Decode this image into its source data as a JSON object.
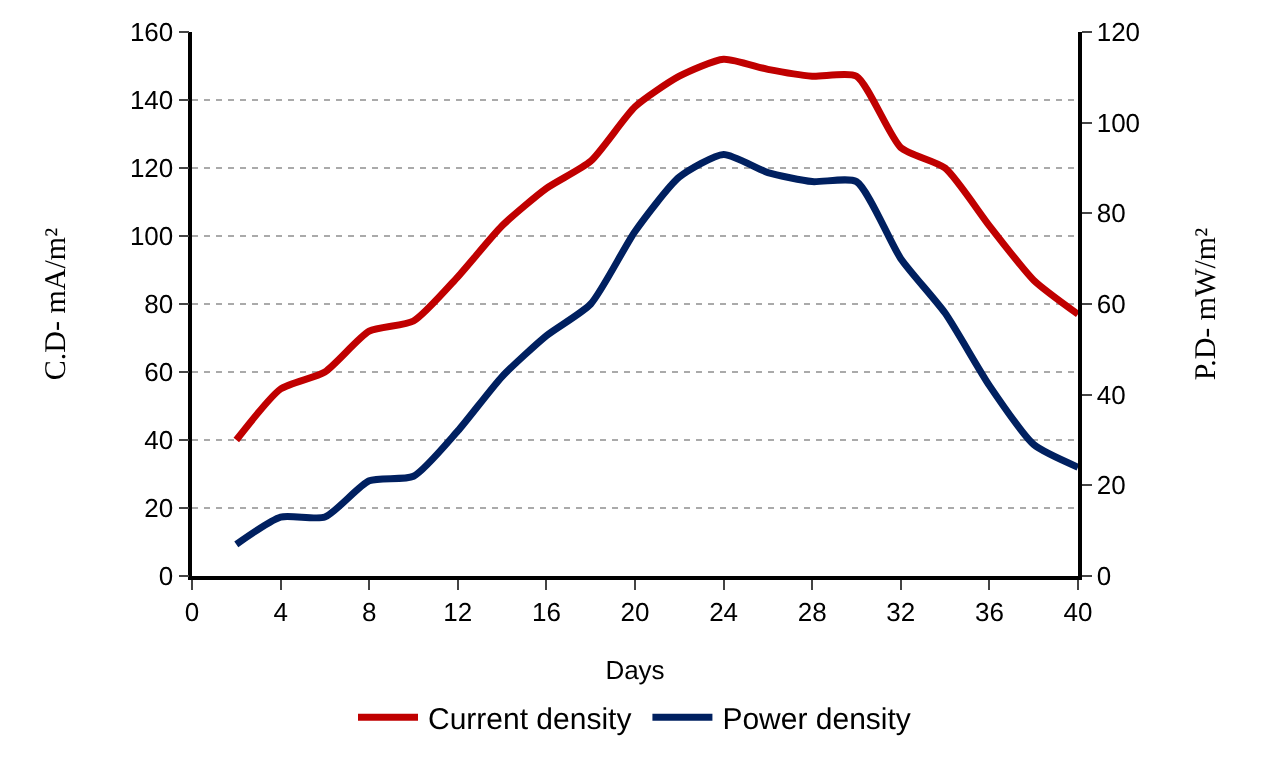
{
  "chart_data": {
    "type": "line",
    "xlabel": "Days",
    "ylabel": "C.D- mA/m²",
    "y2label": "P.D- mW/m²",
    "x": [
      2,
      4,
      6,
      8,
      10,
      12,
      14,
      16,
      18,
      20,
      22,
      24,
      26,
      28,
      30,
      32,
      34,
      36,
      38,
      40
    ],
    "series": [
      {
        "name": "Current density",
        "color": "#c00000",
        "values": [
          40,
          55,
          60,
          72,
          75,
          88,
          103,
          114,
          122,
          138,
          147,
          152,
          149,
          147,
          147,
          126,
          120,
          103,
          87,
          77
        ]
      },
      {
        "name": "Power density",
        "color": "#002060",
        "axis": "y2",
        "values": [
          7,
          13,
          13,
          21,
          22,
          32,
          44,
          53,
          60,
          76,
          88,
          93,
          89,
          87,
          87,
          70,
          58,
          42,
          29,
          24
        ]
      }
    ],
    "xlim": [
      0,
      40
    ],
    "xticks": [
      0,
      4,
      8,
      12,
      16,
      20,
      24,
      28,
      32,
      36,
      40
    ],
    "ylim": [
      0,
      160
    ],
    "yticks": [
      0,
      20,
      40,
      60,
      80,
      100,
      120,
      140,
      160
    ],
    "y2lim": [
      0,
      120
    ],
    "y2ticks": [
      0,
      20,
      40,
      60,
      80,
      100,
      120
    ],
    "grid": "y",
    "legend": "bottom",
    "marker": "none",
    "line_style": "solid"
  }
}
